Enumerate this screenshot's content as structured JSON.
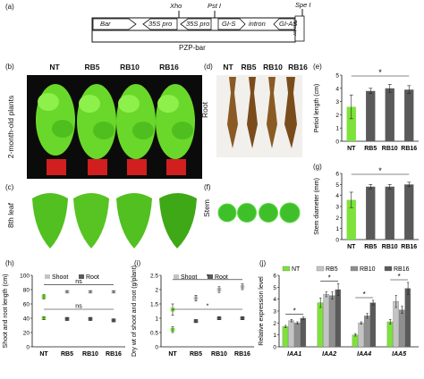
{
  "panels": {
    "a": "(a)",
    "b": "(b)",
    "c": "(c)",
    "d": "(d)",
    "e": "(e)",
    "f": "(f)",
    "g": "(g)",
    "h": "(h)",
    "i": "(i)",
    "j": "(j)"
  },
  "construct": {
    "xho": "Xho",
    "pst": "Pst I",
    "spe": "Spe I",
    "bar": "Bar",
    "pro1": "35S pro",
    "pro2": "35S pro",
    "gis": "GI-S",
    "intron": "intron",
    "gias": "GI-AS",
    "noster": "Nos-ter",
    "vector": "PZP-bar"
  },
  "lines": [
    "NT",
    "RB5",
    "RB10",
    "RB16"
  ],
  "photo_labels": {
    "plants": "2-month-old plants",
    "leaf": "8th leaf",
    "root": "Root",
    "stem": "Stem"
  },
  "colors": {
    "green": "#7de23a",
    "dark": "#5a5a5a",
    "light": "#c4c4c4",
    "mid": "#8f8f8f"
  },
  "chart_data": [
    {
      "panel": "e",
      "type": "bar",
      "categories": [
        "NT",
        "RB5",
        "RB10",
        "RB16"
      ],
      "values": [
        2.6,
        3.8,
        4.0,
        3.9
      ],
      "errors": [
        0.9,
        0.2,
        0.3,
        0.3
      ],
      "ylabel": "Petiol length (cm)",
      "ylim": [
        0,
        5
      ],
      "yticks": [
        "0",
        "1",
        "2",
        "3",
        "4",
        "5"
      ],
      "annotation": "*"
    },
    {
      "panel": "g",
      "type": "bar",
      "categories": [
        "NT",
        "RB5",
        "RB10",
        "RB16"
      ],
      "values": [
        3.6,
        4.8,
        4.8,
        5.0
      ],
      "errors": [
        0.7,
        0.2,
        0.2,
        0.2
      ],
      "ylabel": "Stem diameter (mm)",
      "ylim": [
        0,
        6
      ],
      "yticks": [
        "0",
        "1",
        "2",
        "3",
        "4",
        "5",
        "6"
      ],
      "annotation": "*"
    },
    {
      "panel": "h",
      "type": "line",
      "categories": [
        "NT",
        "RB5",
        "RB10",
        "RB16"
      ],
      "series": [
        {
          "name": "Shoot",
          "values": [
            70,
            77,
            77,
            77
          ],
          "errors": [
            3,
            1,
            1,
            1
          ]
        },
        {
          "name": "Root",
          "values": [
            40,
            39,
            39,
            37
          ],
          "errors": [
            2,
            2,
            2,
            2
          ]
        }
      ],
      "ylabel": "Shoot and root length (cm)",
      "ylim": [
        0,
        100
      ],
      "yticks": [
        "0",
        "20",
        "40",
        "60",
        "80",
        "100"
      ],
      "annotations": [
        "ns",
        "ns"
      ]
    },
    {
      "panel": "i",
      "type": "line",
      "categories": [
        "NT",
        "RB5",
        "RB10",
        "RB16"
      ],
      "series": [
        {
          "name": "Shoot",
          "values": [
            1.3,
            1.7,
            2.0,
            2.1
          ],
          "errors": [
            0.2,
            0.1,
            0.1,
            0.1
          ]
        },
        {
          "name": "Root",
          "values": [
            0.6,
            0.9,
            1.0,
            1.0
          ],
          "errors": [
            0.1,
            0.05,
            0.05,
            0.05
          ]
        }
      ],
      "ylabel": "Dry wt of shoot and root (g/plant)",
      "ylim": [
        0,
        2.5
      ],
      "yticks": [
        "0",
        "0.5",
        "1",
        "1.5",
        "2",
        "2.5"
      ],
      "annotations": [
        "*",
        "*"
      ]
    },
    {
      "panel": "j",
      "type": "bar",
      "categories": [
        "IAA1",
        "IAA2",
        "IAA4",
        "IAA5"
      ],
      "series": [
        {
          "name": "NT",
          "values": [
            1.7,
            3.7,
            1.0,
            2.1
          ],
          "errors": [
            0.1,
            0.4,
            0.1,
            0.2
          ]
        },
        {
          "name": "RB5",
          "values": [
            2.2,
            4.4,
            2.0,
            3.8
          ],
          "errors": [
            0.1,
            0.2,
            0.1,
            0.5
          ]
        },
        {
          "name": "RB10",
          "values": [
            2.0,
            4.3,
            2.6,
            3.1
          ],
          "errors": [
            0.1,
            0.3,
            0.2,
            0.3
          ]
        },
        {
          "name": "RB16",
          "values": [
            2.4,
            4.8,
            3.7,
            4.9
          ],
          "errors": [
            0.1,
            0.5,
            0.2,
            0.5
          ]
        }
      ],
      "ylabel": "Relative expression level",
      "ylim": [
        0,
        6
      ],
      "yticks": [
        "0",
        "1",
        "2",
        "3",
        "4",
        "5",
        "6"
      ],
      "annotations": [
        "*",
        "*",
        "*",
        "*"
      ]
    }
  ]
}
